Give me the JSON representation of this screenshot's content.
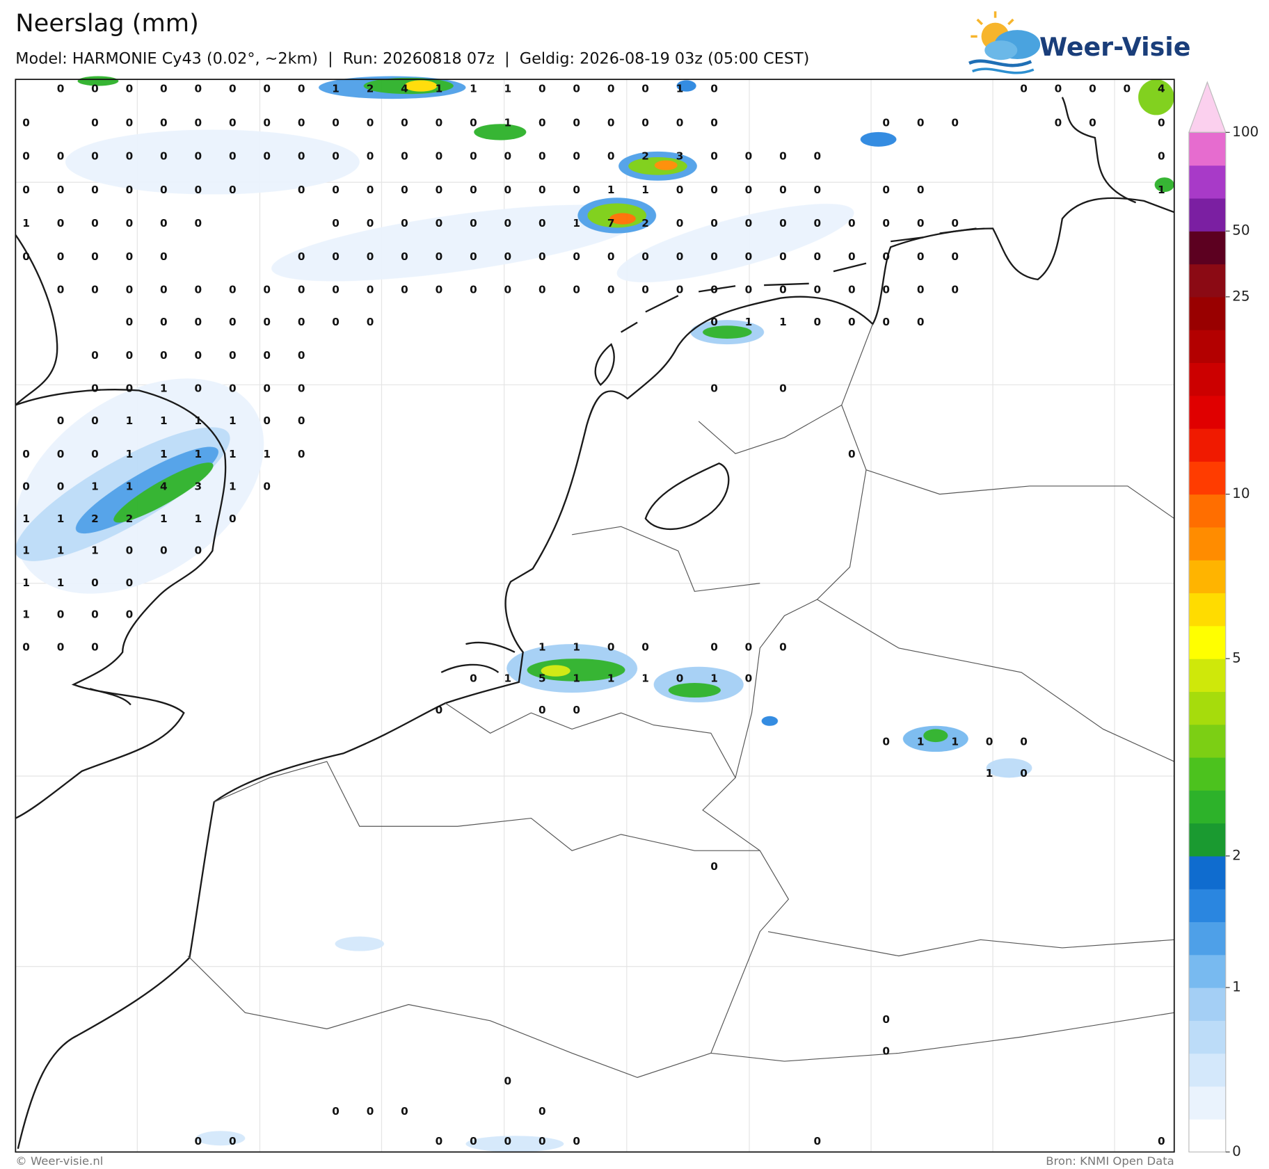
{
  "header": {
    "title": "Neerslag (mm)",
    "subtitle": "Model: HARMONIE Cy43 (0.02°, ~2km)  |  Run: 20260818 07z  |  Geldig: 2026-08-19 03z (05:00 CEST)"
  },
  "logo": "Weer-Visie",
  "colorbar": {
    "ticks": [
      0,
      1,
      2,
      5,
      10,
      25,
      50,
      100
    ],
    "colors": [
      "#ffffff",
      "#eaf3fd",
      "#d4e8fb",
      "#bcdcf8",
      "#a4cff5",
      "#78baf0",
      "#4ea0e8",
      "#2a86e0",
      "#0f6ccf",
      "#1a9a30",
      "#2db22a",
      "#4cc21e",
      "#7ccf14",
      "#a6dc0c",
      "#cfe80a",
      "#ffff00",
      "#ffdc00",
      "#ffb400",
      "#ff8c00",
      "#ff6e00",
      "#ff3c00",
      "#f01a00",
      "#e00000",
      "#cc0000",
      "#b30000",
      "#990000",
      "#8b0a14",
      "#5c0020",
      "#7b1fa2",
      "#a83ac8",
      "#e66ccf"
    ],
    "extend_color": "#fbd0ee"
  },
  "map": {
    "grid": [
      [
        null,
        0,
        0,
        0,
        0,
        0,
        0,
        0,
        0,
        1,
        2,
        4,
        1,
        1,
        1,
        0,
        0,
        0,
        0,
        1,
        0,
        null,
        null,
        null,
        null,
        null,
        null,
        null,
        null,
        0,
        0,
        0,
        0,
        4
      ],
      [
        0,
        null,
        0,
        0,
        0,
        0,
        0,
        0,
        0,
        0,
        0,
        0,
        0,
        0,
        1,
        0,
        0,
        0,
        0,
        0,
        0,
        null,
        null,
        null,
        null,
        0,
        0,
        0,
        null,
        null,
        0,
        0,
        null,
        0
      ],
      [
        0,
        0,
        0,
        0,
        0,
        0,
        0,
        0,
        0,
        0,
        0,
        0,
        0,
        0,
        0,
        0,
        0,
        0,
        2,
        3,
        0,
        0,
        0,
        0,
        null,
        null,
        null,
        null,
        null,
        null,
        null,
        null,
        null,
        0
      ],
      [
        0,
        0,
        0,
        0,
        0,
        0,
        0,
        null,
        0,
        0,
        0,
        0,
        0,
        0,
        0,
        0,
        0,
        1,
        1,
        0,
        0,
        0,
        0,
        0,
        null,
        0,
        0,
        null,
        null,
        null,
        null,
        null,
        null,
        1
      ],
      [
        1,
        0,
        0,
        0,
        0,
        0,
        null,
        null,
        null,
        0,
        0,
        0,
        0,
        0,
        0,
        0,
        1,
        7,
        2,
        0,
        0,
        0,
        0,
        0,
        0,
        0,
        0,
        0
      ],
      [
        0,
        0,
        0,
        0,
        0,
        null,
        null,
        null,
        0,
        0,
        0,
        0,
        0,
        0,
        0,
        0,
        0,
        0,
        0,
        0,
        0,
        0,
        0,
        0,
        0,
        0,
        0,
        0
      ],
      [
        null,
        0,
        0,
        0,
        0,
        0,
        0,
        0,
        0,
        0,
        0,
        0,
        0,
        0,
        0,
        0,
        0,
        0,
        0,
        0,
        0,
        0,
        0,
        0,
        0,
        0,
        0,
        0
      ],
      [
        null,
        null,
        null,
        0,
        0,
        0,
        0,
        0,
        0,
        0,
        0,
        null,
        null,
        null,
        null,
        null,
        null,
        null,
        null,
        null,
        0,
        1,
        1,
        0,
        0,
        0,
        0
      ],
      [
        null,
        null,
        0,
        0,
        0,
        0,
        0,
        0,
        0
      ],
      [
        null,
        null,
        0,
        0,
        1,
        0,
        0,
        0,
        0,
        null,
        null,
        null,
        null,
        null,
        null,
        null,
        null,
        null,
        null,
        null,
        0,
        null,
        0
      ],
      [
        null,
        0,
        0,
        1,
        1,
        1,
        1,
        0,
        0
      ],
      [
        0,
        0,
        0,
        1,
        1,
        1,
        1,
        1,
        0,
        null,
        null,
        null,
        null,
        null,
        null,
        null,
        null,
        null,
        null,
        null,
        null,
        null,
        null,
        null,
        0
      ],
      [
        0,
        0,
        1,
        1,
        4,
        3,
        1,
        0
      ],
      [
        1,
        1,
        2,
        2,
        1,
        1,
        0
      ],
      [
        1,
        1,
        1,
        0,
        0,
        0
      ],
      [
        1,
        1,
        0,
        0
      ],
      [
        1,
        0,
        0,
        0
      ],
      [
        0,
        0,
        0,
        null,
        null,
        null,
        null,
        null,
        null,
        null,
        null,
        null,
        null,
        null,
        null,
        1,
        1,
        0,
        0,
        null,
        0,
        0,
        0
      ],
      [
        null,
        null,
        null,
        null,
        null,
        null,
        null,
        null,
        null,
        null,
        null,
        null,
        null,
        0,
        1,
        5,
        1,
        1,
        1,
        0,
        1,
        0
      ],
      [
        null,
        null,
        null,
        null,
        null,
        null,
        null,
        null,
        null,
        null,
        null,
        null,
        0,
        null,
        null,
        0,
        0
      ],
      [
        null,
        null,
        null,
        null,
        null,
        null,
        null,
        null,
        null,
        null,
        null,
        null,
        null,
        null,
        null,
        null,
        null,
        null,
        null,
        null,
        null,
        null,
        null,
        null,
        null,
        0,
        1,
        1,
        0,
        0
      ],
      [
        null,
        null,
        null,
        null,
        null,
        null,
        null,
        null,
        null,
        null,
        null,
        null,
        null,
        null,
        null,
        null,
        null,
        null,
        null,
        null,
        null,
        null,
        null,
        null,
        null,
        null,
        null,
        null,
        1,
        0
      ],
      [
        null,
        null,
        null,
        null,
        null,
        null,
        null,
        null,
        null,
        null,
        null,
        null,
        null,
        null,
        null,
        null,
        null,
        null,
        null,
        null,
        0
      ],
      [
        null,
        null,
        null,
        null,
        null,
        null,
        null,
        null,
        null,
        null,
        null,
        null,
        null,
        null,
        null,
        null,
        null,
        null,
        null,
        null,
        null,
        null,
        null,
        null,
        null,
        0
      ],
      [
        null,
        null,
        null,
        null,
        null,
        null,
        null,
        null,
        null,
        null,
        null,
        null,
        null,
        null,
        null,
        null,
        null,
        null,
        null,
        null,
        null,
        null,
        null,
        null,
        null,
        0
      ],
      [
        null,
        null,
        null,
        null,
        null,
        null,
        null,
        null,
        null,
        null,
        null,
        null,
        null,
        null,
        0
      ],
      [
        null,
        null,
        null,
        null,
        null,
        null,
        null,
        null,
        null,
        0,
        0,
        0,
        null,
        null,
        null,
        0
      ],
      [
        null,
        null,
        null,
        null,
        null,
        0,
        0,
        null,
        null,
        null,
        null,
        null,
        0,
        0,
        0,
        0,
        0,
        null,
        null,
        null,
        null,
        null,
        null,
        0,
        null,
        null,
        null,
        null,
        null,
        null,
        null,
        null,
        null,
        0
      ]
    ]
  },
  "footer": {
    "left": "© Weer-visie.nl",
    "right": "Bron: KNMI Open Data"
  }
}
